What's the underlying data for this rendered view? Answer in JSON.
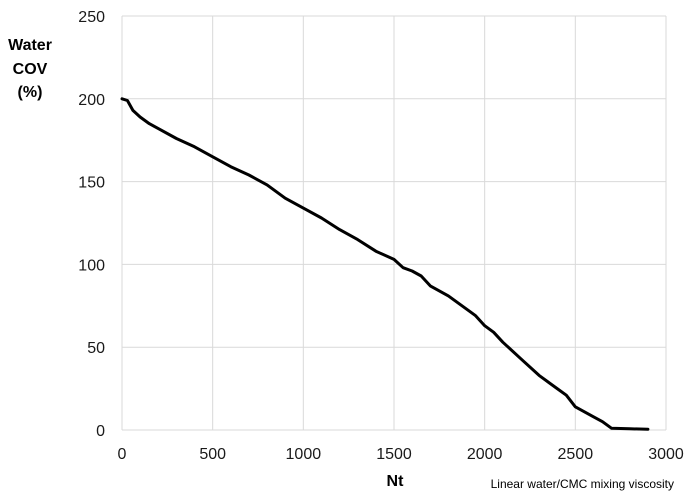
{
  "chart_data": {
    "type": "line",
    "title": "",
    "xlabel": "Nt",
    "ylabel": [
      "Water",
      "COV",
      "(%)"
    ],
    "annotation": "Linear water/CMC mixing viscosity",
    "xlim": [
      0,
      3000
    ],
    "ylim": [
      0,
      250
    ],
    "x_ticks": [
      0,
      500,
      1000,
      1500,
      2000,
      2500,
      3000
    ],
    "y_ticks": [
      0,
      50,
      100,
      150,
      200,
      250
    ],
    "grid": {
      "vertical": true,
      "horizontal": true
    },
    "legend": "none",
    "series": [
      {
        "color": "#000000",
        "points": [
          [
            0,
            200
          ],
          [
            30,
            199
          ],
          [
            60,
            193
          ],
          [
            100,
            189
          ],
          [
            150,
            185
          ],
          [
            200,
            182
          ],
          [
            300,
            176
          ],
          [
            400,
            171
          ],
          [
            500,
            165
          ],
          [
            600,
            159
          ],
          [
            700,
            154
          ],
          [
            800,
            148
          ],
          [
            900,
            140
          ],
          [
            1000,
            134
          ],
          [
            1100,
            128
          ],
          [
            1200,
            121
          ],
          [
            1300,
            115
          ],
          [
            1400,
            108
          ],
          [
            1500,
            103
          ],
          [
            1550,
            98
          ],
          [
            1600,
            96
          ],
          [
            1650,
            93
          ],
          [
            1700,
            87
          ],
          [
            1800,
            81
          ],
          [
            1900,
            73
          ],
          [
            1950,
            69
          ],
          [
            2000,
            63
          ],
          [
            2050,
            59
          ],
          [
            2100,
            53
          ],
          [
            2200,
            43
          ],
          [
            2300,
            33
          ],
          [
            2350,
            29
          ],
          [
            2400,
            25
          ],
          [
            2450,
            21
          ],
          [
            2500,
            14
          ],
          [
            2550,
            11
          ],
          [
            2600,
            8
          ],
          [
            2650,
            5
          ],
          [
            2700,
            1
          ],
          [
            2800,
            0.7
          ],
          [
            2900,
            0.5
          ]
        ]
      }
    ]
  }
}
